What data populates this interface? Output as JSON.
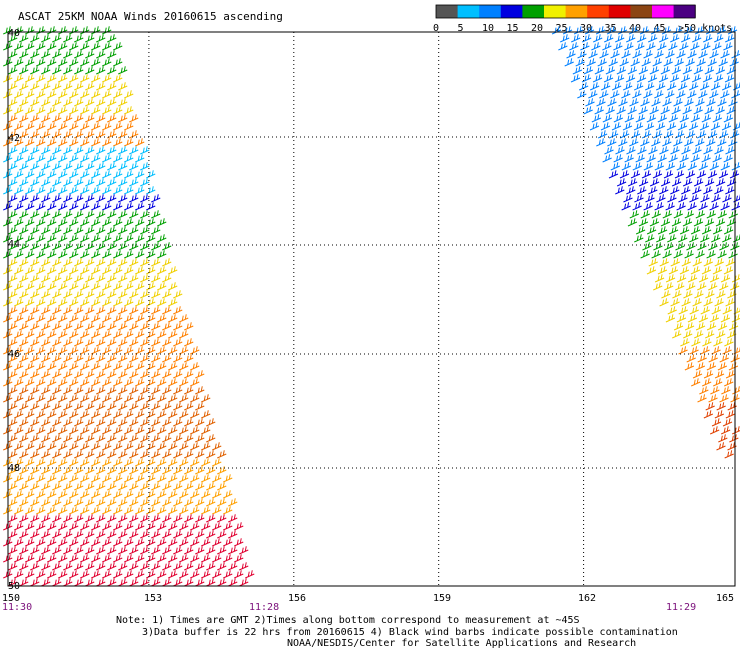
{
  "title": "ASCAT 25KM NOAA Winds 20160615 ascending",
  "legend": {
    "values": [
      "0",
      "5",
      "10",
      "15",
      "20",
      "25",
      "30",
      "35",
      "40",
      "45",
      ">50 knots"
    ],
    "colors": [
      "#555555",
      "#00bfff",
      "#0080ff",
      "#0000e0",
      "#00a000",
      "#f0f000",
      "#ffa000",
      "#ff4000",
      "#e00000",
      "#8b4513",
      "#ff00ff",
      "#4b0082"
    ]
  },
  "axes": {
    "lon_ticks": [
      "150",
      "153",
      "156",
      "159",
      "162",
      "165"
    ],
    "lat_ticks": [
      "40",
      "42",
      "44",
      "46",
      "48",
      "50"
    ],
    "lat_range": [
      40,
      50
    ],
    "lon_range": [
      150,
      165
    ]
  },
  "times": [
    "11:30",
    "11:28",
    "11:29"
  ],
  "notes": {
    "line1": "Note: 1) Times are GMT 2)Times along bottom correspond to measurement at ~45S",
    "line2": "3)Data buffer is 22 hrs from 20160615 4) Black wind barbs indicate possible contamination",
    "line3": "NOAA/NESDIS/Center for Satellite Applications and Research"
  },
  "swaths": {
    "left_bands": [
      {
        "lat": [
          40,
          40.8
        ],
        "color": "#00a000"
      },
      {
        "lat": [
          40.8,
          41.6
        ],
        "color": "#f0d000"
      },
      {
        "lat": [
          41.6,
          42.1
        ],
        "color": "#ff8000"
      },
      {
        "lat": [
          42.1,
          43.0
        ],
        "color": "#00bfff"
      },
      {
        "lat": [
          43.0,
          43.3
        ],
        "color": "#0000e0"
      },
      {
        "lat": [
          43.3,
          44.2
        ],
        "color": "#00a000"
      },
      {
        "lat": [
          44.2,
          45.0
        ],
        "color": "#f0d000"
      },
      {
        "lat": [
          45.0,
          46.5
        ],
        "color": "#ff8000"
      },
      {
        "lat": [
          46.5,
          47.8
        ],
        "color": "#e06000"
      },
      {
        "lat": [
          47.8,
          48.8
        ],
        "color": "#ffa000"
      },
      {
        "lat": [
          48.8,
          50.0
        ],
        "color": "#e00030"
      }
    ],
    "right_bands": [
      {
        "lat": [
          40,
          42.5
        ],
        "color": "#0080ff"
      },
      {
        "lat": [
          42.5,
          43.3
        ],
        "color": "#0000e0"
      },
      {
        "lat": [
          43.3,
          44.2
        ],
        "color": "#00a000"
      },
      {
        "lat": [
          44.2,
          45.8
        ],
        "color": "#f0d000"
      },
      {
        "lat": [
          45.8,
          46.8
        ],
        "color": "#ff8000"
      },
      {
        "lat": [
          46.8,
          47.5
        ],
        "color": "#e04000"
      }
    ]
  }
}
